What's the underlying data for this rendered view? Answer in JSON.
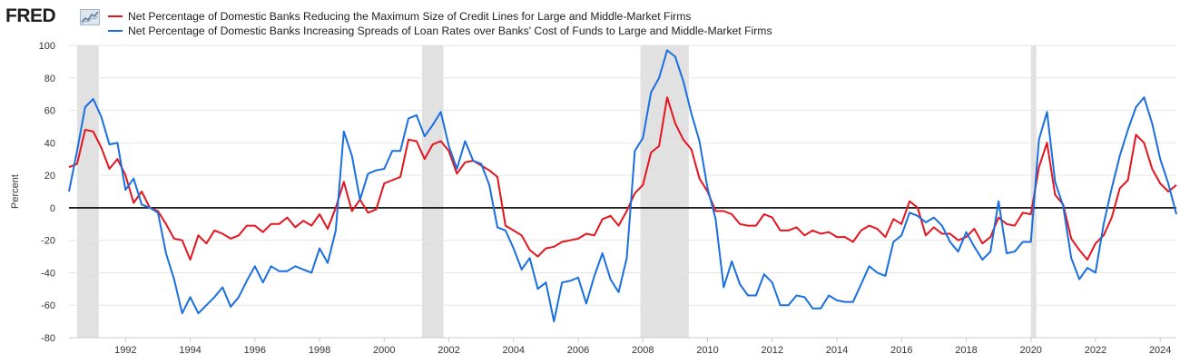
{
  "logo": {
    "text": "FRED",
    "icon": "trend-chart-icon"
  },
  "colors": {
    "series1": "#e4151f",
    "series2": "#1a6fe0",
    "recession": "#e1e1e1",
    "zero_line": "#000000",
    "grid": "#e6e6e6"
  },
  "chart_data": {
    "type": "line",
    "ylabel": "Percent",
    "ylim": [
      -80,
      100
    ],
    "yticks": [
      100,
      80,
      60,
      40,
      20,
      0,
      -20,
      -40,
      -60,
      -80
    ],
    "xlim": [
      1990.25,
      2024.5
    ],
    "xticks": [
      1992,
      1994,
      1996,
      1998,
      2000,
      2002,
      2004,
      2006,
      2008,
      2010,
      2012,
      2014,
      2016,
      2018,
      2020,
      2022,
      2024
    ],
    "zero_line": true,
    "grid": "horizontal",
    "legend_position": "top-left",
    "recessions": [
      [
        1990.5,
        1991.17
      ],
      [
        2001.17,
        2001.83
      ],
      [
        2007.92,
        2009.42
      ],
      [
        2020.0,
        2020.17
      ]
    ],
    "series": [
      {
        "name": "Net Percentage of Domestic Banks Reducing the Maximum Size of Credit Lines for Large and Middle-Market Firms",
        "color": "#e4151f",
        "x": [
          1990.25,
          1990.5,
          1990.75,
          1991.0,
          1991.25,
          1991.5,
          1991.75,
          1992.0,
          1992.25,
          1992.5,
          1992.75,
          1993.0,
          1993.25,
          1993.5,
          1993.75,
          1994.0,
          1994.25,
          1994.5,
          1994.75,
          1995.0,
          1995.25,
          1995.5,
          1995.75,
          1996.0,
          1996.25,
          1996.5,
          1996.75,
          1997.0,
          1997.25,
          1997.5,
          1997.75,
          1998.0,
          1998.25,
          1998.5,
          1998.75,
          1999.0,
          1999.25,
          1999.5,
          1999.75,
          2000.0,
          2000.25,
          2000.5,
          2000.75,
          2001.0,
          2001.25,
          2001.5,
          2001.75,
          2002.0,
          2002.25,
          2002.5,
          2002.75,
          2003.0,
          2003.25,
          2003.5,
          2003.75,
          2004.0,
          2004.25,
          2004.5,
          2004.75,
          2005.0,
          2005.25,
          2005.5,
          2005.75,
          2006.0,
          2006.25,
          2006.5,
          2006.75,
          2007.0,
          2007.25,
          2007.5,
          2007.75,
          2008.0,
          2008.25,
          2008.5,
          2008.75,
          2009.0,
          2009.25,
          2009.5,
          2009.75,
          2010.0,
          2010.25,
          2010.5,
          2010.75,
          2011.0,
          2011.25,
          2011.5,
          2011.75,
          2012.0,
          2012.25,
          2012.5,
          2012.75,
          2013.0,
          2013.25,
          2013.5,
          2013.75,
          2014.0,
          2014.25,
          2014.5,
          2014.75,
          2015.0,
          2015.25,
          2015.5,
          2015.75,
          2016.0,
          2016.25,
          2016.5,
          2016.75,
          2017.0,
          2017.25,
          2017.5,
          2017.75,
          2018.0,
          2018.25,
          2018.5,
          2018.75,
          2019.0,
          2019.25,
          2019.5,
          2019.75,
          2020.0,
          2020.25,
          2020.5,
          2020.75,
          2021.0,
          2021.25,
          2021.5,
          2021.75,
          2022.0,
          2022.25,
          2022.5,
          2022.75,
          2023.0,
          2023.25,
          2023.5,
          2023.75,
          2024.0,
          2024.25,
          2024.5
        ],
        "values": [
          25,
          27,
          48,
          47,
          37,
          24,
          30,
          20,
          3,
          10,
          0,
          -2,
          -10,
          -19,
          -20,
          -32,
          -17,
          -22,
          -14,
          -16,
          -19,
          -17,
          -11,
          -11,
          -15,
          -10,
          -10,
          -6,
          -12,
          -8,
          -11,
          -4,
          -13,
          0,
          16,
          -2,
          5,
          -3,
          -1,
          15,
          17,
          19,
          42,
          41,
          30,
          39,
          41,
          35,
          21,
          28,
          29,
          26,
          23,
          19,
          -11,
          -14,
          -17,
          -26,
          -30,
          -25,
          -24,
          -21,
          -20,
          -19,
          -16,
          -17,
          -7,
          -5,
          -11,
          -2,
          9,
          14,
          34,
          38,
          68,
          52,
          42,
          36,
          18,
          10,
          -2,
          -2,
          -4,
          -10,
          -11,
          -11,
          -4,
          -6,
          -14,
          -14,
          -12,
          -17,
          -14,
          -16,
          -15,
          -18,
          -18,
          -21,
          -14,
          -11,
          -13,
          -18,
          -7,
          -10,
          4,
          0,
          -17,
          -12,
          -16,
          -16,
          -20,
          -18,
          -13,
          -22,
          -18,
          -6,
          -10,
          -11,
          -3,
          -4,
          25,
          40,
          8,
          2,
          -19,
          -26,
          -32,
          -22,
          -17,
          -6,
          12,
          17,
          45,
          40,
          24,
          15,
          10,
          14
        ]
      },
      {
        "name": "Net Percentage of Domestic Banks Increasing Spreads of Loan Rates over Banks' Cost of Funds to Large and Middle-Market Firms",
        "color": "#1a6fe0",
        "x": [
          1990.25,
          1990.5,
          1990.75,
          1991.0,
          1991.25,
          1991.5,
          1991.75,
          1992.0,
          1992.25,
          1992.5,
          1992.75,
          1993.0,
          1993.25,
          1993.5,
          1993.75,
          1994.0,
          1994.25,
          1994.5,
          1994.75,
          1995.0,
          1995.25,
          1995.5,
          1995.75,
          1996.0,
          1996.25,
          1996.5,
          1996.75,
          1997.0,
          1997.25,
          1997.5,
          1997.75,
          1998.0,
          1998.25,
          1998.5,
          1998.75,
          1999.0,
          1999.25,
          1999.5,
          1999.75,
          2000.0,
          2000.25,
          2000.5,
          2000.75,
          2001.0,
          2001.25,
          2001.5,
          2001.75,
          2002.0,
          2002.25,
          2002.5,
          2002.75,
          2003.0,
          2003.25,
          2003.5,
          2003.75,
          2004.0,
          2004.25,
          2004.5,
          2004.75,
          2005.0,
          2005.25,
          2005.5,
          2005.75,
          2006.0,
          2006.25,
          2006.5,
          2006.75,
          2007.0,
          2007.25,
          2007.5,
          2007.75,
          2008.0,
          2008.25,
          2008.5,
          2008.75,
          2009.0,
          2009.25,
          2009.5,
          2009.75,
          2010.0,
          2010.25,
          2010.5,
          2010.75,
          2011.0,
          2011.25,
          2011.5,
          2011.75,
          2012.0,
          2012.25,
          2012.5,
          2012.75,
          2013.0,
          2013.25,
          2013.5,
          2013.75,
          2014.0,
          2014.25,
          2014.5,
          2014.75,
          2015.0,
          2015.25,
          2015.5,
          2015.75,
          2016.0,
          2016.25,
          2016.5,
          2016.75,
          2017.0,
          2017.25,
          2017.5,
          2017.75,
          2018.0,
          2018.25,
          2018.5,
          2018.75,
          2019.0,
          2019.25,
          2019.5,
          2019.75,
          2020.0,
          2020.25,
          2020.5,
          2020.75,
          2021.0,
          2021.25,
          2021.5,
          2021.75,
          2022.0,
          2022.25,
          2022.5,
          2022.75,
          2023.0,
          2023.25,
          2023.5,
          2023.75,
          2024.0,
          2024.25,
          2024.5
        ],
        "values": [
          10,
          35,
          62,
          67,
          56,
          39,
          40,
          11,
          18,
          2,
          0,
          -3,
          -28,
          -44,
          -65,
          -55,
          -65,
          -60,
          -55,
          -49,
          -61,
          -55,
          -45,
          -36,
          -46,
          -36,
          -39,
          -39,
          -36,
          -38,
          -40,
          -25,
          -34,
          -14,
          47,
          32,
          5,
          21,
          23,
          24,
          35,
          35,
          55,
          57,
          44,
          51,
          59,
          38,
          24,
          41,
          29,
          27,
          14,
          -12,
          -14,
          -25,
          -38,
          -31,
          -50,
          -46,
          -70,
          -46,
          -45,
          -43,
          -59,
          -42,
          -28,
          -44,
          -52,
          -31,
          35,
          43,
          71,
          80,
          97,
          93,
          78,
          58,
          41,
          12,
          -7,
          -49,
          -33,
          -47,
          -54,
          -54,
          -41,
          -46,
          -60,
          -60,
          -54,
          -55,
          -62,
          -62,
          -54,
          -57,
          -58,
          -58,
          -47,
          -36,
          -40,
          -42,
          -21,
          -17,
          -3,
          -5,
          -9,
          -6,
          -11,
          -21,
          -27,
          -15,
          -24,
          -32,
          -27,
          4,
          -28,
          -27,
          -21,
          -21,
          42,
          59,
          16,
          1,
          -31,
          -44,
          -37,
          -40,
          -10,
          12,
          32,
          48,
          62,
          68,
          52,
          30,
          15,
          -4
        ]
      }
    ]
  }
}
